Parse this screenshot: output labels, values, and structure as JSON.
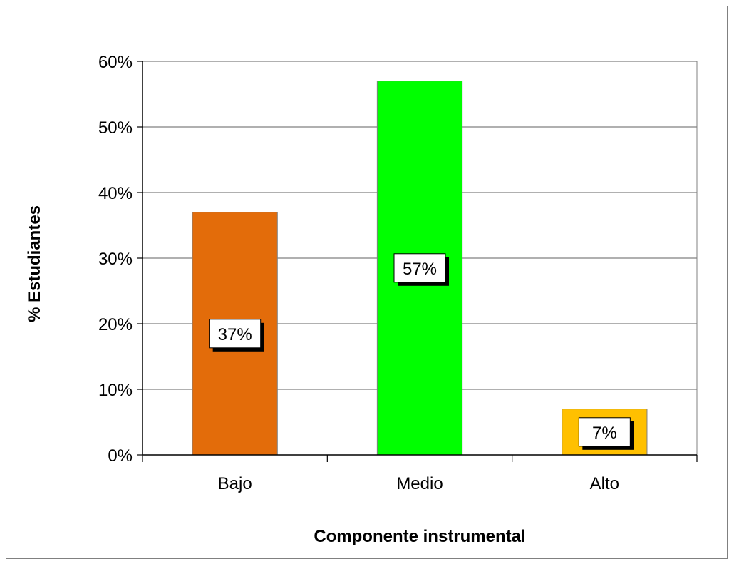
{
  "chart_data": {
    "type": "bar",
    "categories": [
      "Bajo",
      "Medio",
      "Alto"
    ],
    "values": [
      37,
      57,
      7
    ],
    "data_labels": [
      "37%",
      "57%",
      "7%"
    ],
    "colors": [
      "#E36C0A",
      "#00FF00",
      "#FFC000"
    ],
    "title": "",
    "xlabel": "Componente instrumental",
    "ylabel": "% Estudiantes",
    "ylim": [
      0,
      60
    ],
    "yticks": [
      0,
      10,
      20,
      30,
      40,
      50,
      60
    ],
    "ytick_labels": [
      "0%",
      "10%",
      "20%",
      "30%",
      "40%",
      "50%",
      "60%"
    ],
    "grid": true,
    "legend": "none"
  }
}
